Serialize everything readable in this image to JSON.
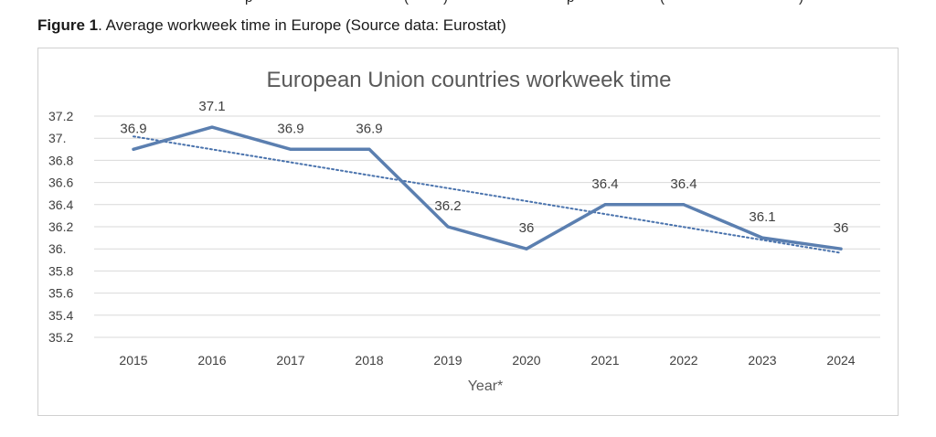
{
  "top_strip_fragments": [
    "p",
    "(",
    ")",
    "p",
    "(",
    ")"
  ],
  "figure_caption": {
    "label": "Figure 1",
    "text": ". Average workweek time in Europe (Source data: Eurostat)"
  },
  "chart_data": {
    "type": "line",
    "title": "European Union countries workweek time",
    "xlabel": "Year*",
    "ylabel": "",
    "categories": [
      "2015",
      "2016",
      "2017",
      "2018",
      "2019",
      "2020",
      "2021",
      "2022",
      "2023",
      "2024"
    ],
    "series": [
      {
        "values": [
          36.9,
          37.1,
          36.9,
          36.9,
          36.2,
          36.0,
          36.4,
          36.4,
          36.1,
          36.0
        ]
      }
    ],
    "data_labels": [
      "36.9",
      "37.1",
      "36.9",
      "36.9",
      "36.2",
      "36",
      "36.4",
      "36.4",
      "36.1",
      "36"
    ],
    "trendline": {
      "type": "linear",
      "style": "dotted"
    },
    "ylim": [
      35.2,
      37.2
    ],
    "yticks": [
      "35.2",
      "35.4",
      "35.6",
      "35.8",
      "36.",
      "36.2",
      "36.4",
      "36.6",
      "36.8",
      "37.",
      "37.2"
    ],
    "grid": true,
    "legend": "none",
    "colors": {
      "series": "#5b7fb0",
      "trendline": "#4a73ad",
      "grid": "#d9d9d9",
      "text": "#404040"
    }
  }
}
